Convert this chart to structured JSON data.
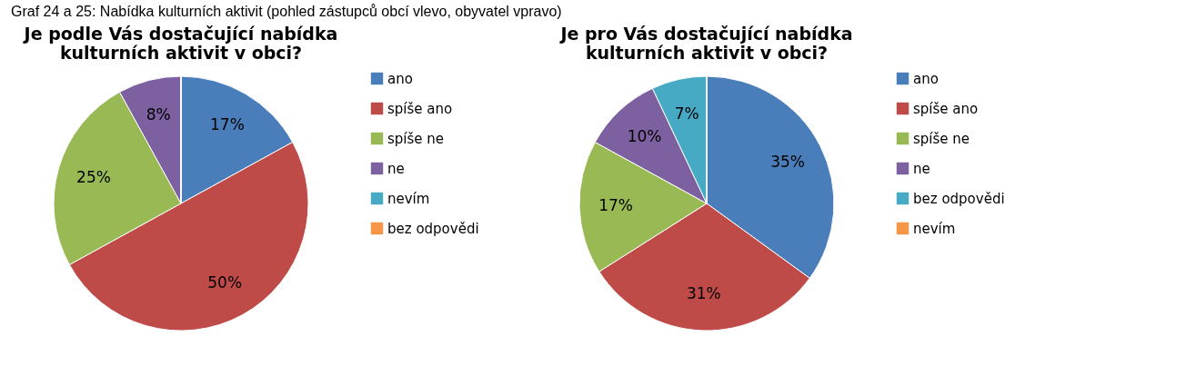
{
  "chart_data": [
    {
      "type": "pie",
      "title": "Je podle Vás dostačující nabídka kulturních aktivit v obci?",
      "annotations": [
        "Graf 24 a 25: Nabídka kulturních aktivit (pohled zástupců obcí vlevo, obyvatel vpravo)"
      ],
      "categories": [
        "ano",
        "spíše ano",
        "spíše ne",
        "ne",
        "nevím",
        "bez odpovědi"
      ],
      "values": [
        17,
        50,
        25,
        8,
        0,
        0
      ],
      "value_labels": [
        "17%",
        "50%",
        "25%",
        "8%",
        null,
        null
      ],
      "colors": [
        "#4a7ebb",
        "#be4b48",
        "#98b954",
        "#7d60a0",
        "#46aac5",
        "#f79646"
      ],
      "legend": "right"
    },
    {
      "type": "pie",
      "title": "Je pro Vás dostačující nabídka kulturních aktivit v obci?",
      "categories": [
        "ano",
        "spíše ano",
        "spíše ne",
        "ne",
        "bez odpovědi",
        "nevím"
      ],
      "values": [
        35,
        31,
        17,
        10,
        7,
        0
      ],
      "value_labels": [
        "35%",
        "31%",
        "17%",
        "10%",
        "7%",
        null
      ],
      "colors": [
        "#4a7ebb",
        "#be4b48",
        "#98b954",
        "#7d60a0",
        "#46aac5",
        "#f79646"
      ],
      "legend": "right"
    }
  ]
}
